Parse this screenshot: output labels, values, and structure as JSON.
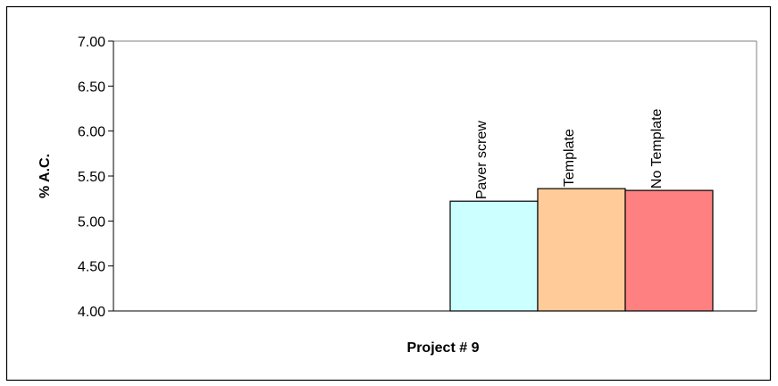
{
  "chart_data": {
    "type": "bar",
    "title": "",
    "xlabel": "Project # 9",
    "ylabel": "% A.C.",
    "ylim": [
      4.0,
      7.0
    ],
    "yticks": [
      "4.00",
      "4.50",
      "5.00",
      "5.50",
      "6.00",
      "6.50",
      "7.00"
    ],
    "grid": false,
    "legend": "none",
    "series": [
      {
        "name": "Paver screw",
        "value": 5.22,
        "color": "#CCFFFF"
      },
      {
        "name": "Template",
        "value": 5.36,
        "color": "#FFCC99"
      },
      {
        "name": "No Template",
        "value": 5.34,
        "color": "#FF8080"
      }
    ]
  }
}
